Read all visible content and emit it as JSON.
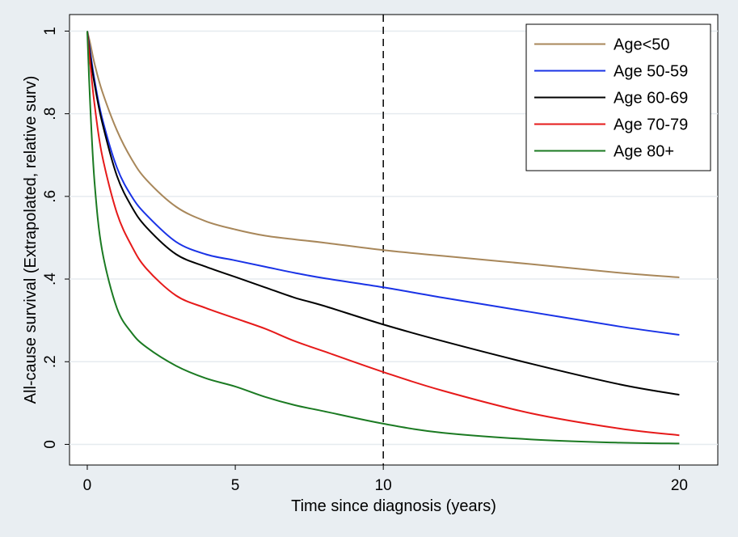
{
  "chart_data": {
    "type": "line",
    "title": "",
    "xlabel": "Time since diagnosis (years)",
    "ylabel": "All-cause survival (Extrapolated, relative surv)",
    "xlim": [
      -0.6,
      21.3
    ],
    "ylim": [
      -0.05,
      1.04
    ],
    "x_ticks": [
      0,
      5,
      10,
      20
    ],
    "x_tick_labels": [
      "0",
      "5",
      "10",
      "20"
    ],
    "y_ticks": [
      0,
      0.2,
      0.4,
      0.6,
      0.8,
      1
    ],
    "y_tick_labels": [
      "0",
      ".2",
      ".4",
      ".6",
      ".8",
      "1"
    ],
    "grid": "horizontal",
    "legend_position": "top-right",
    "reference_line": {
      "x": 10,
      "style": "dashed"
    },
    "x": [
      0,
      0.1,
      0.25,
      0.5,
      1,
      1.5,
      2,
      3,
      4,
      5,
      6,
      7,
      8,
      10,
      12,
      15,
      18,
      20
    ],
    "series": [
      {
        "name": "Age<50",
        "color": "#a8875a",
        "values": [
          1.0,
          0.97,
          0.92,
          0.855,
          0.76,
          0.69,
          0.64,
          0.575,
          0.54,
          0.52,
          0.505,
          0.496,
          0.488,
          0.47,
          0.456,
          0.436,
          0.415,
          0.404
        ]
      },
      {
        "name": "Age 50-59",
        "color": "#1a33e6",
        "values": [
          1.0,
          0.95,
          0.88,
          0.79,
          0.67,
          0.6,
          0.555,
          0.49,
          0.46,
          0.445,
          0.43,
          0.415,
          0.402,
          0.38,
          0.355,
          0.32,
          0.285,
          0.265
        ]
      },
      {
        "name": "Age 60-69",
        "color": "#000000",
        "values": [
          1.0,
          0.94,
          0.87,
          0.78,
          0.65,
          0.575,
          0.525,
          0.46,
          0.43,
          0.405,
          0.38,
          0.355,
          0.335,
          0.29,
          0.25,
          0.195,
          0.145,
          0.12
        ]
      },
      {
        "name": "Age 70-79",
        "color": "#e61a1a",
        "values": [
          1.0,
          0.92,
          0.82,
          0.7,
          0.56,
          0.48,
          0.425,
          0.36,
          0.33,
          0.305,
          0.28,
          0.25,
          0.225,
          0.175,
          0.13,
          0.075,
          0.038,
          0.022
        ]
      },
      {
        "name": "Age 80+",
        "color": "#1b7a22",
        "values": [
          1.0,
          0.82,
          0.63,
          0.47,
          0.33,
          0.27,
          0.235,
          0.19,
          0.16,
          0.14,
          0.115,
          0.095,
          0.08,
          0.05,
          0.028,
          0.012,
          0.004,
          0.002
        ]
      }
    ]
  }
}
